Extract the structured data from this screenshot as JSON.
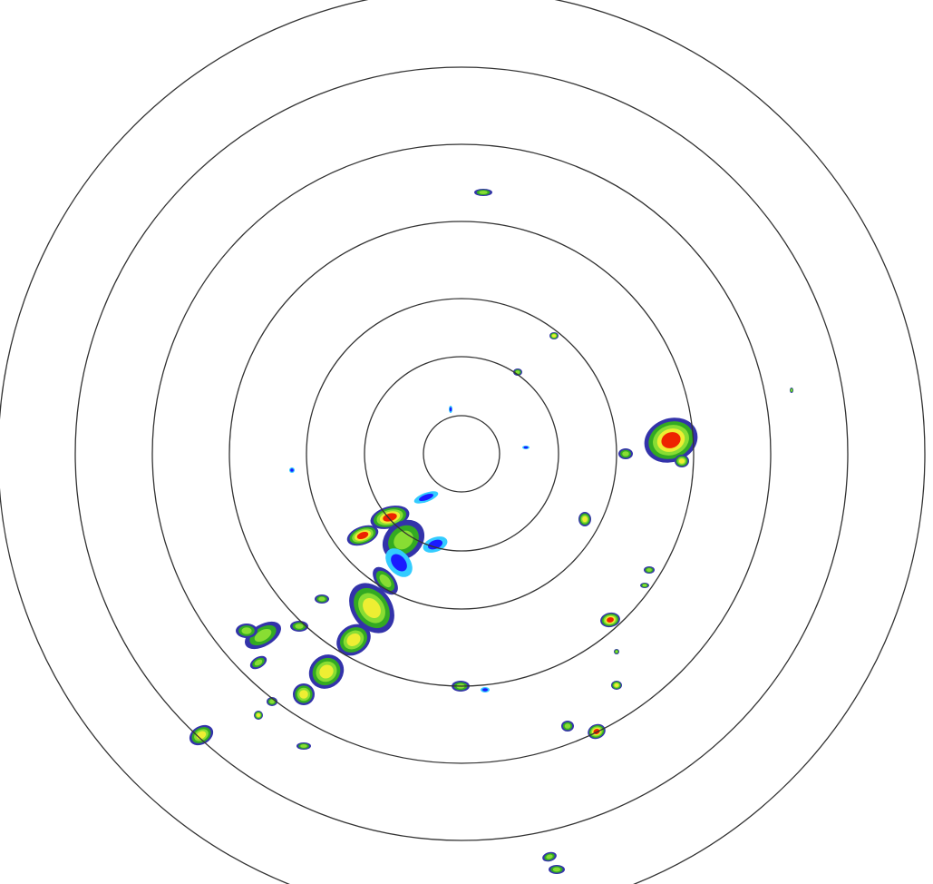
{
  "radar": {
    "ring_count": 7,
    "ring_color": "#333333",
    "background": "#ffffff",
    "reflectivity_palette": {
      "light_cyan": "#33ccff",
      "blue": "#1a1aff",
      "dark_blue": "#3333aa",
      "green": "#33aa22",
      "light_green": "#88dd33",
      "yellow": "#eeee33",
      "orange": "#ff9922",
      "red": "#ee2200"
    }
  }
}
